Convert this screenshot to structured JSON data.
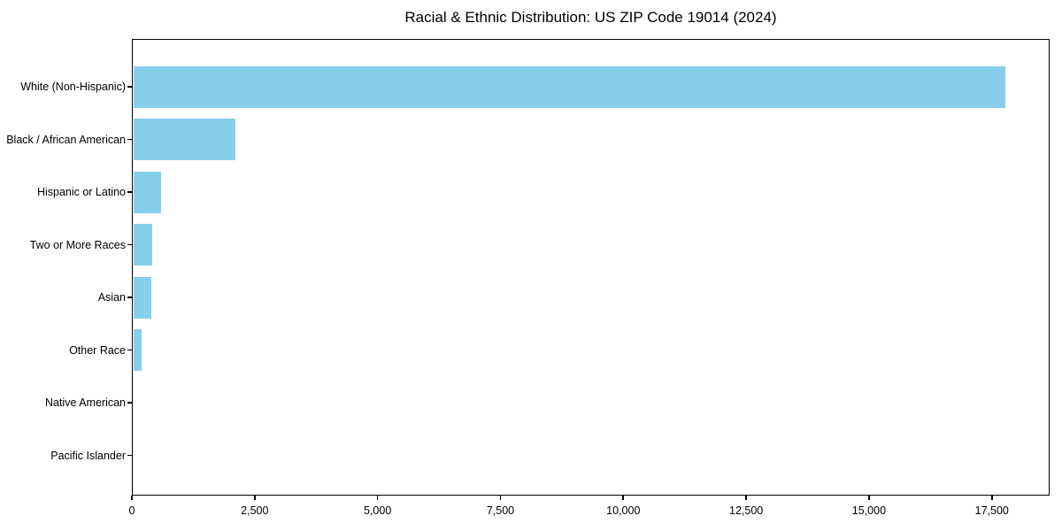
{
  "chart_data": {
    "type": "bar",
    "orientation": "horizontal",
    "title": "Racial & Ethnic Distribution: US ZIP Code 19014 (2024)",
    "categories": [
      "White (Non-Hispanic)",
      "Black / African American",
      "Hispanic or Latino",
      "Two or More Races",
      "Asian",
      "Other Race",
      "Native American",
      "Pacific Islander"
    ],
    "values": [
      17750,
      2070,
      560,
      390,
      360,
      165,
      0,
      0
    ],
    "xlabel": "",
    "ylabel": "",
    "xlim": [
      0,
      18675
    ],
    "x_ticks": [
      0,
      2500,
      5000,
      7500,
      10000,
      12500,
      15000,
      17500
    ],
    "x_tick_labels": [
      "0",
      "2,500",
      "5,000",
      "7,500",
      "10,000",
      "12,500",
      "15,000",
      "17,500"
    ],
    "bar_color": "#87CEEB",
    "axis_color": "#000000",
    "text_color": "#000000",
    "background": "#FFFFFF",
    "grid": false,
    "legend": false
  }
}
